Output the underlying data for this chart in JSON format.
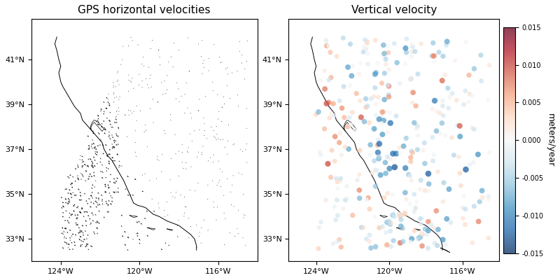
{
  "title_left": "GPS horizontal velocities",
  "title_right": "Vertical velocity",
  "colorbar_label": "meters/year",
  "xlim": [
    -125.5,
    -114
  ],
  "ylim": [
    32.0,
    42.8
  ],
  "xticks": [
    -124,
    -120,
    -116
  ],
  "yticks": [
    33,
    35,
    37,
    39,
    41
  ],
  "xtick_labels": [
    "124°W",
    "120°W",
    "116°W"
  ],
  "ytick_labels": [
    "33°N",
    "35°N",
    "37°N",
    "39°N",
    "41°N"
  ],
  "vmin": -0.015,
  "vmax": 0.015,
  "colormap": "RdBu_r",
  "background": "#ffffff",
  "figsize": [
    8.0,
    4.0
  ],
  "dpi": 100
}
